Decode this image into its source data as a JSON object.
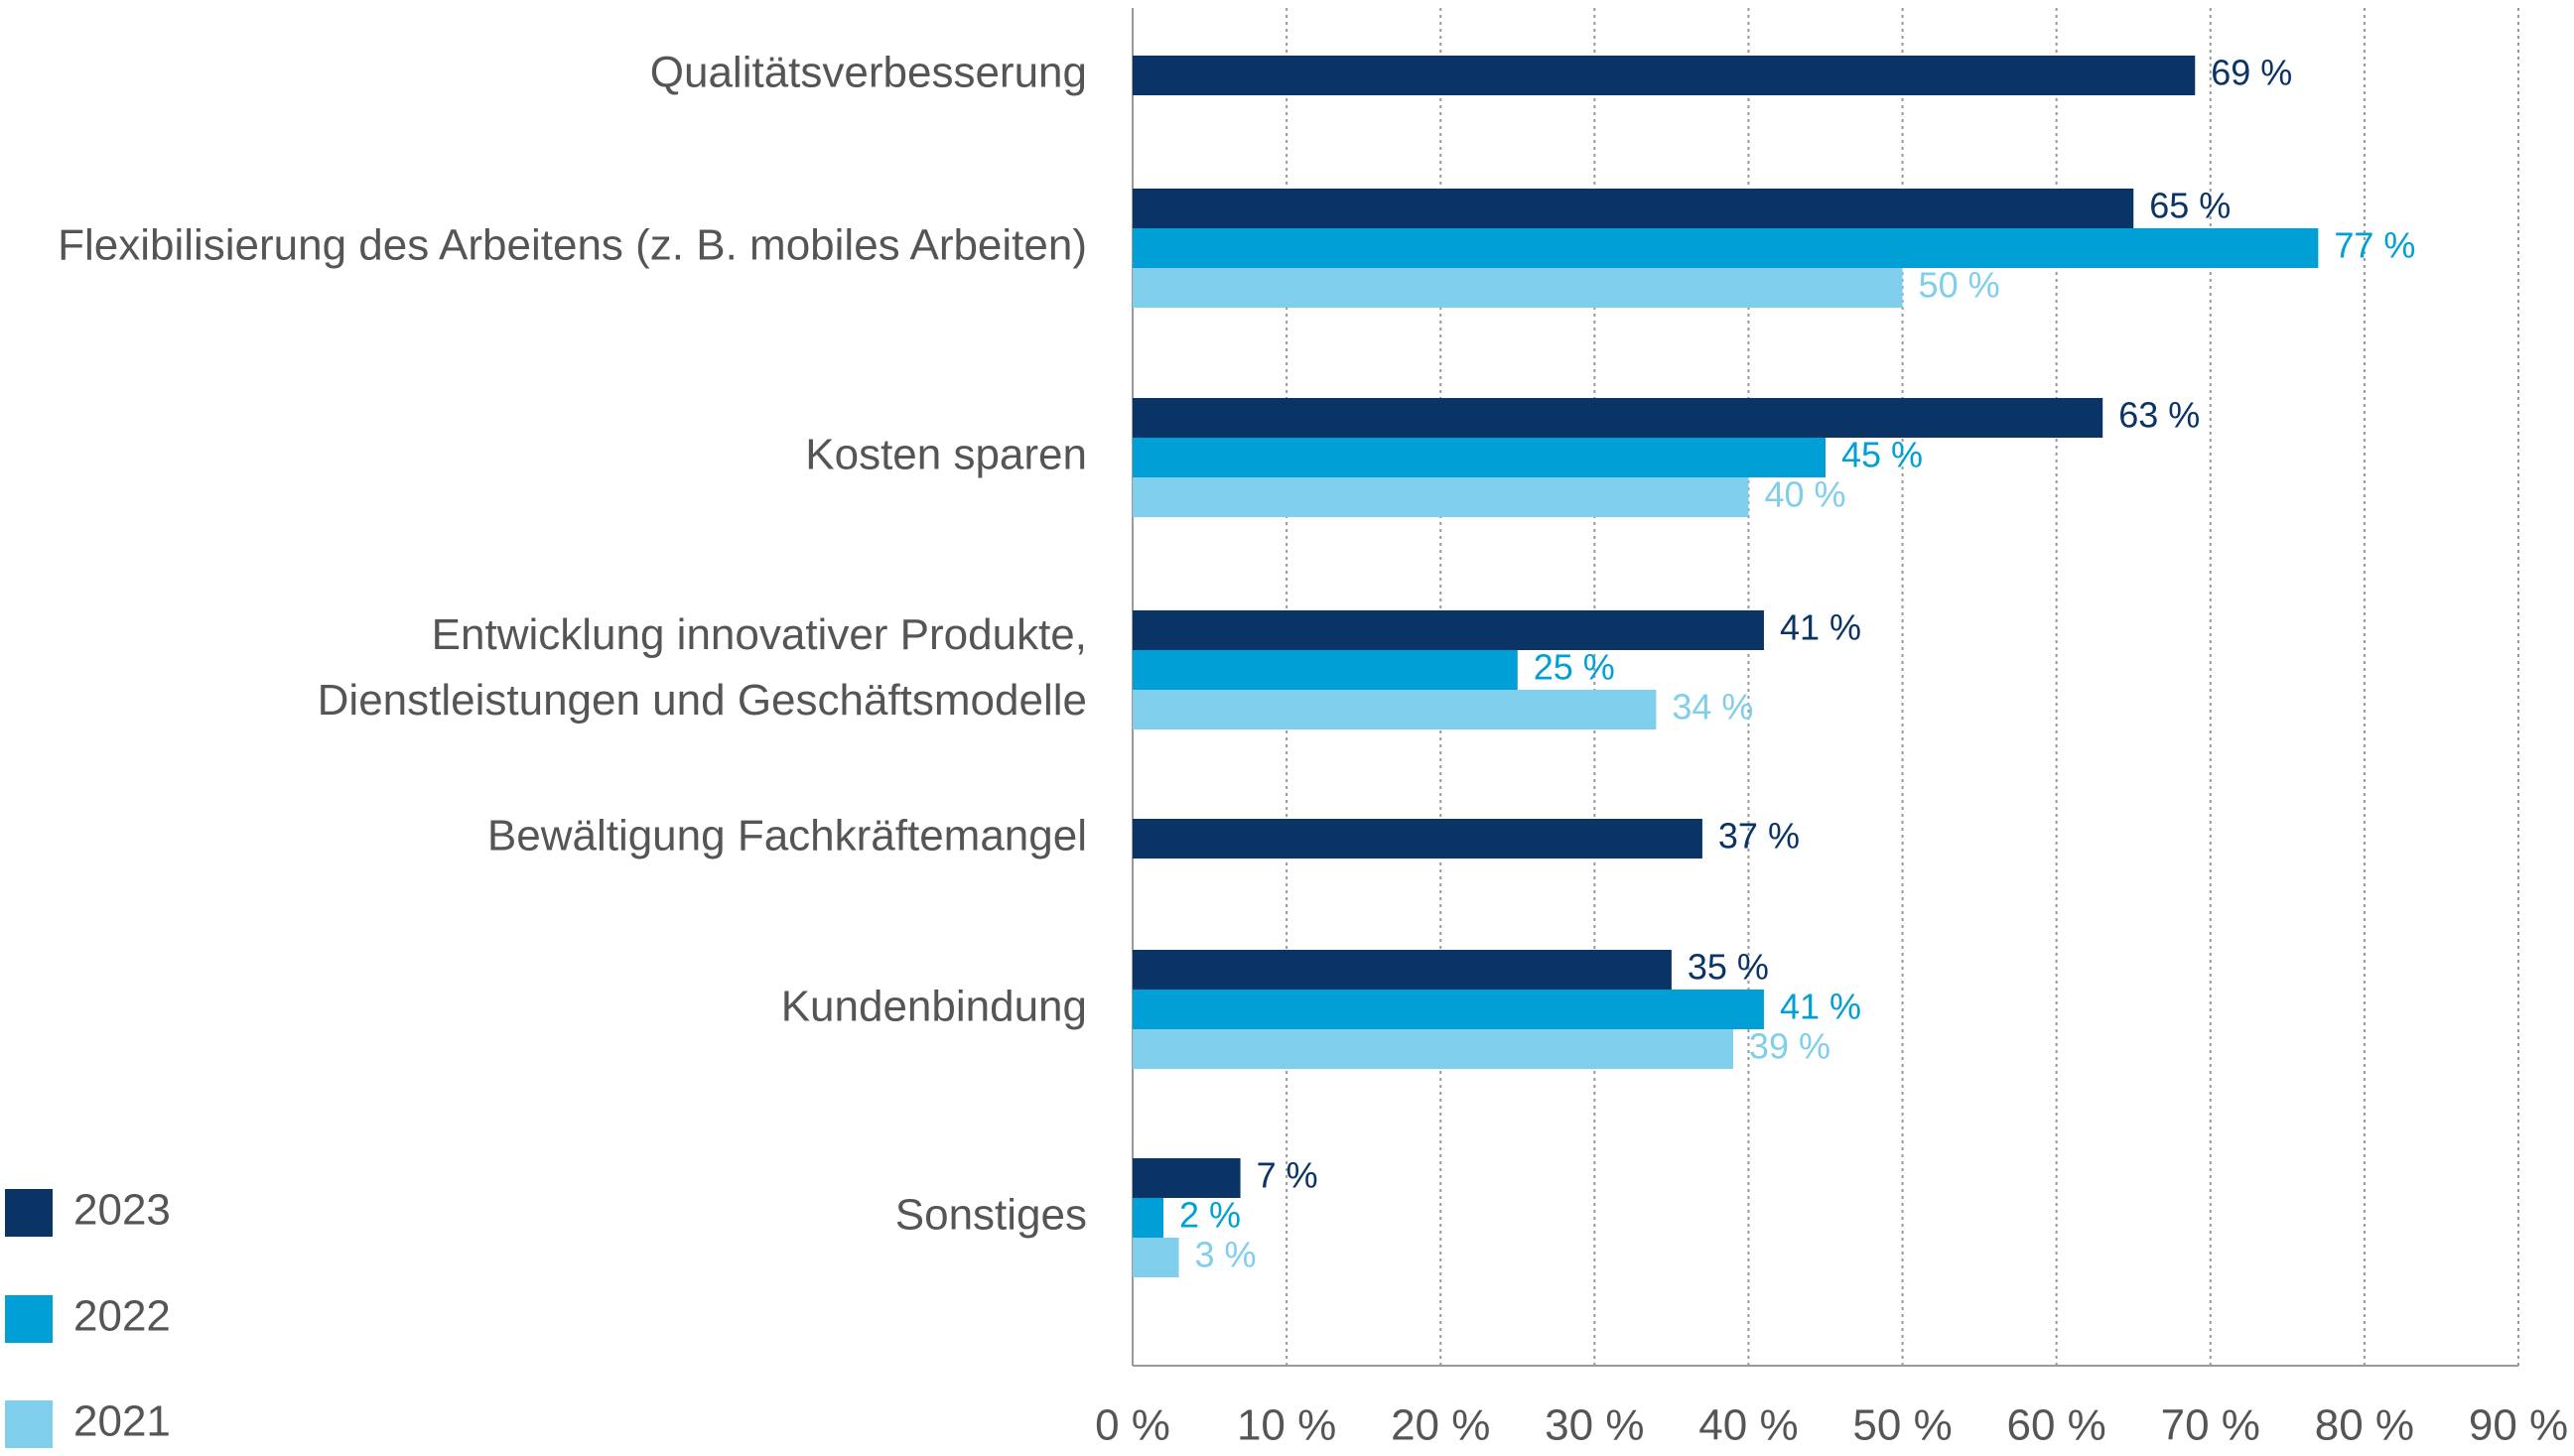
{
  "chart_data": {
    "type": "bar",
    "orientation": "horizontal",
    "categories": [
      "Qualitätsverbesserung",
      "Flexibilisierung des Arbeitens (z. B. mobiles Arbeiten)",
      "Kosten sparen",
      "Entwicklung innovativer Produkte,\nDienstleistungen und Geschäftsmodelle",
      "Bewältigung Fachkräftemangel",
      "Kundenbindung",
      "Sonstiges"
    ],
    "series": [
      {
        "name": "2023",
        "color": "#0b3466",
        "values": [
          69,
          65,
          63,
          41,
          37,
          35,
          7
        ],
        "value_labels": [
          "69 %",
          "65 %",
          "63 %",
          "41 %",
          "37 %",
          "35 %",
          "7 %"
        ]
      },
      {
        "name": "2022",
        "color": "#00a0d6",
        "values": [
          null,
          77,
          45,
          25,
          null,
          41,
          2
        ],
        "value_labels": [
          null,
          "77 %",
          "45 %",
          "25 %",
          null,
          "41 %",
          "2 %"
        ]
      },
      {
        "name": "2021",
        "color": "#7fcfec",
        "values": [
          null,
          50,
          40,
          34,
          null,
          39,
          3
        ],
        "value_labels": [
          null,
          "50 %",
          "40 %",
          "34 %",
          null,
          "39 %",
          "3 %"
        ]
      }
    ],
    "xlim": [
      0,
      90
    ],
    "xticks": [
      {
        "value": 0,
        "label": "0 %"
      },
      {
        "value": 10,
        "label": "10 %"
      },
      {
        "value": 20,
        "label": "20 %"
      },
      {
        "value": 30,
        "label": "30 %"
      },
      {
        "value": 40,
        "label": "40 %"
      },
      {
        "value": 50,
        "label": "50 %"
      },
      {
        "value": 60,
        "label": "60 %"
      },
      {
        "value": 70,
        "label": "70 %"
      },
      {
        "value": 80,
        "label": "80 %"
      },
      {
        "value": 90,
        "label": "90 %"
      }
    ],
    "grid": true,
    "legend": "bottom-left"
  }
}
